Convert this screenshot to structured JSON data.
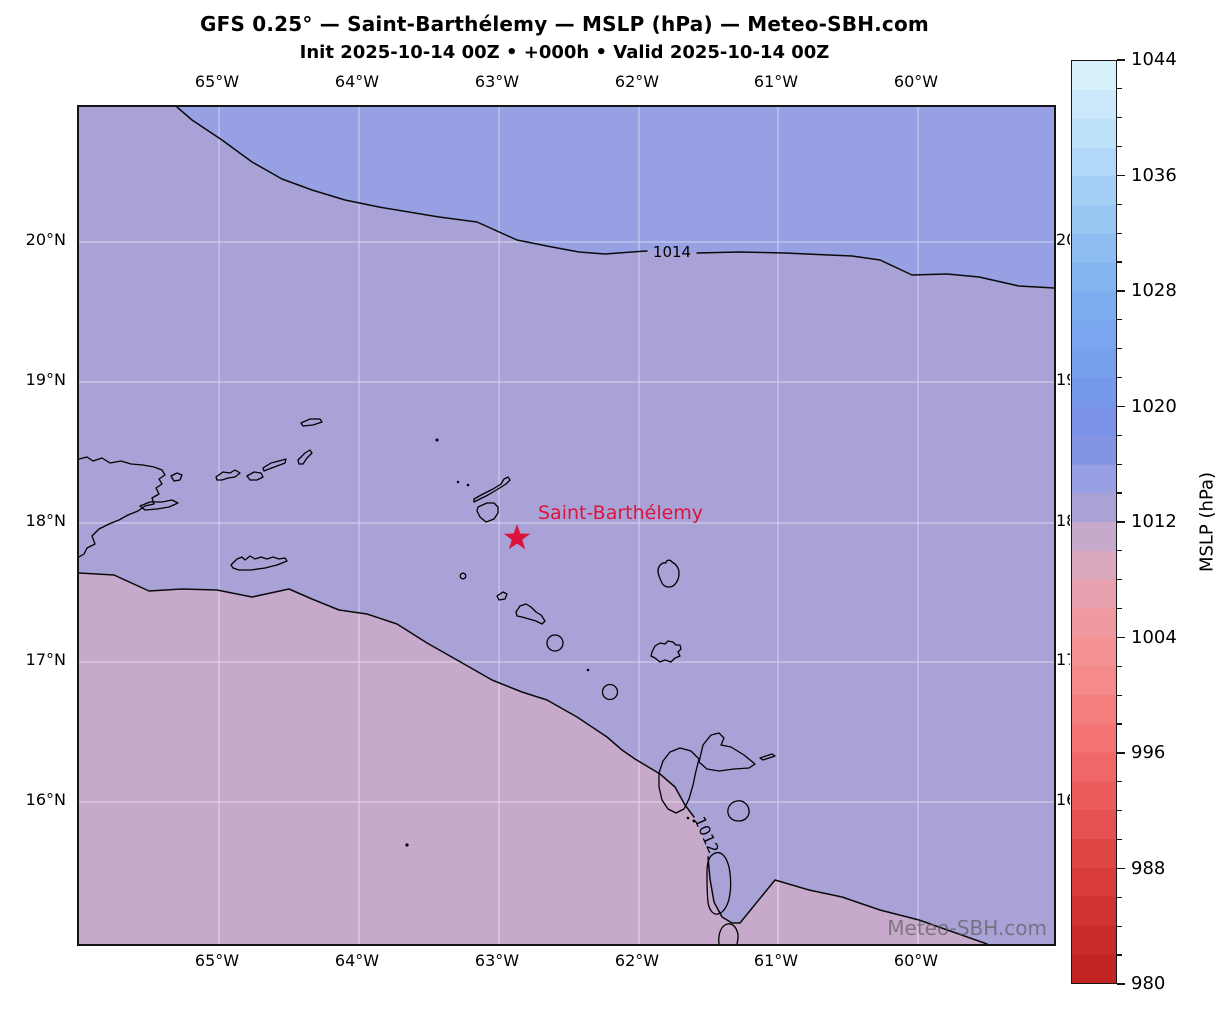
{
  "title": "GFS 0.25° — Saint-Barthélemy — MSLP (hPa) — Meteo-SBH.com",
  "subtitle": "Init 2025-10-14 00Z • +000h • Valid 2025-10-14 00Z",
  "watermark": "Meteo-SBH.com",
  "station_label": "Saint-Barthélemy",
  "axes": {
    "x_tick_labels": [
      "65°W",
      "64°W",
      "63°W",
      "62°W",
      "61°W",
      "60°W"
    ],
    "y_tick_labels": [
      "20°N",
      "19°N",
      "18°N",
      "17°N",
      "16°N"
    ]
  },
  "chart_data": {
    "type": "heatmap",
    "variable": "Mean sea level pressure (MSLP)",
    "units": "hPa",
    "model": "GFS 0.25°",
    "init": "2025-10-14 00Z",
    "forecast_hour": "+000h",
    "valid": "2025-10-14 00Z",
    "extent": {
      "lon_west": 66,
      "lon_east": 59,
      "lat_south": 15,
      "lat_north": 21
    },
    "x_ticks": [
      "65°W",
      "64°W",
      "63°W",
      "62°W",
      "61°W",
      "60°W"
    ],
    "y_ticks": [
      "20°N",
      "19°N",
      "18°N",
      "17°N",
      "16°N"
    ],
    "grid": true,
    "contour_lines": [
      {
        "value": 1012,
        "label": "1012",
        "path": "runs from the west edge near 17.6°N southeastward, passing west of Guadeloupe and Dominica, exiting the south edge near 60.5°W"
      },
      {
        "value": 1014,
        "label": "1014",
        "path": "runs from the north edge near 65.3°W eastward across the top of the map near 20°N to the east edge"
      }
    ],
    "pressure_bands_visible": [
      {
        "range_hpa": "1014-1016",
        "color": "#96a0e2",
        "area": "north of the 1014 contour"
      },
      {
        "range_hpa": "1012-1014",
        "color": "#a9a2d7",
        "area": "central band between the two contours"
      },
      {
        "range_hpa": "1010-1012",
        "color": "#c7a9cc",
        "area": "southwest of the 1012 contour"
      }
    ],
    "marker": {
      "name": "Saint-Barthélemy",
      "lat_n": 17.9,
      "lon_w": 62.85,
      "symbol": "star",
      "color": "#dc143c"
    },
    "colorbar": {
      "label": "MSLP (hPa)",
      "min": 980,
      "max": 1044,
      "major_ticks": [
        1044,
        1036,
        1028,
        1020,
        1012,
        1004,
        996,
        988,
        980
      ],
      "minor_step": 2,
      "band_colors_top_to_bottom": [
        "#d7f1fd",
        "#cbe9fb",
        "#bee1fa",
        "#b1d8f8",
        "#a4cff5",
        "#99c7f3",
        "#8ebdf1",
        "#85b5f0",
        "#7eadef",
        "#79a6ee",
        "#769fed",
        "#7598ea",
        "#7a93e8",
        "#8494e4",
        "#96a0e2",
        "#a9a2d7",
        "#c7a9cc",
        "#d9a7be",
        "#e7a1af",
        "#f099a0",
        "#f49194",
        "#f58a8a",
        "#f57f7e",
        "#f37473",
        "#ef6867",
        "#ea5c5b",
        "#e45150",
        "#de4645",
        "#d73c3b",
        "#d03332",
        "#c92b2a",
        "#c22423"
      ]
    }
  },
  "colors": {
    "band_blue": "#96a0e2",
    "band_purple": "#a9a2d7",
    "band_pink": "#c7a9cc",
    "coastline": "#000000",
    "marker": "#dc143c",
    "gridline": "rgba(255,255,255,0.45)"
  }
}
